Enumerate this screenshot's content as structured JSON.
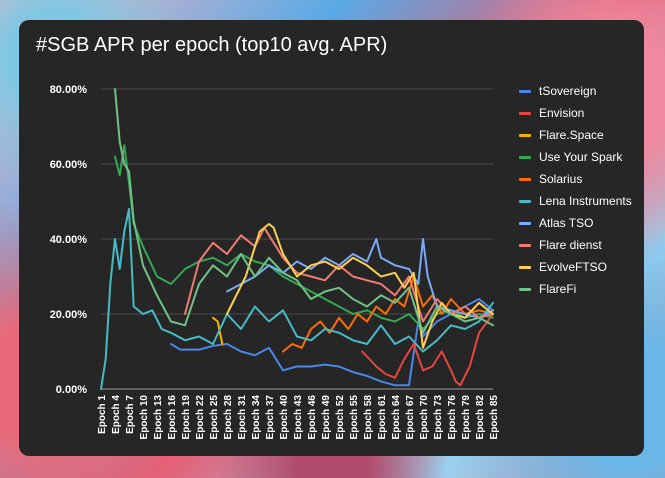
{
  "chart_data": {
    "type": "line",
    "title": "#SGB APR per epoch (top10 avg. APR)",
    "xlabel": "",
    "ylabel": "",
    "ylim": [
      0,
      80
    ],
    "y_ticks": [
      "0.00%",
      "20.00%",
      "40.00%",
      "60.00%",
      "80.00%"
    ],
    "x_ticks": [
      "Epoch 1",
      "Epoch 4",
      "Epoch 7",
      "Epoch 10",
      "Epoch 13",
      "Epoch 16",
      "Epoch 19",
      "Epoch 22",
      "Epoch 25",
      "Epoch 28",
      "Epoch 31",
      "Epoch 34",
      "Epoch 37",
      "Epoch 40",
      "Epoch 43",
      "Epoch 46",
      "Epoch 49",
      "Epoch 52",
      "Epoch 55",
      "Epoch 58",
      "Epoch 61",
      "Epoch 64",
      "Epoch 67",
      "Epoch 70",
      "Epoch 73",
      "Epoch 76",
      "Epoch 79",
      "Epoch 82",
      "Epoch 85"
    ],
    "x_range": [
      1,
      85
    ],
    "legend_position": "right",
    "series": [
      {
        "name": "tSovereign",
        "color": "#4a86e8",
        "points": [
          [
            16,
            12
          ],
          [
            18,
            10.5
          ],
          [
            22,
            10.5
          ],
          [
            25,
            11.5
          ],
          [
            28,
            12
          ],
          [
            31,
            10
          ],
          [
            34,
            9
          ],
          [
            37,
            11
          ],
          [
            39,
            7
          ],
          [
            40,
            5
          ],
          [
            43,
            6
          ],
          [
            46,
            6
          ],
          [
            49,
            6.5
          ],
          [
            52,
            6
          ],
          [
            55,
            4.5
          ],
          [
            58,
            3.5
          ],
          [
            61,
            2
          ],
          [
            64,
            1
          ],
          [
            67,
            1
          ],
          [
            69,
            18
          ],
          [
            70,
            14
          ],
          [
            73,
            18
          ],
          [
            76,
            20
          ],
          [
            79,
            22
          ],
          [
            82,
            24
          ],
          [
            85,
            21
          ]
        ]
      },
      {
        "name": "Envision",
        "color": "#e8453c",
        "points": [
          [
            57,
            10
          ],
          [
            60,
            6
          ],
          [
            62,
            4
          ],
          [
            64,
            3
          ],
          [
            66,
            8
          ],
          [
            68,
            12
          ],
          [
            70,
            5
          ],
          [
            72,
            6
          ],
          [
            74,
            10
          ],
          [
            76,
            5
          ],
          [
            77,
            2
          ],
          [
            78,
            1
          ],
          [
            80,
            6
          ],
          [
            82,
            15
          ],
          [
            85,
            20
          ]
        ]
      },
      {
        "name": "Flare.Space",
        "color": "#f6b400",
        "points": [
          [
            25,
            19
          ],
          [
            26,
            18
          ],
          [
            27,
            12
          ]
        ]
      },
      {
        "name": "Use Your Spark",
        "color": "#34a853",
        "points": [
          [
            4,
            62
          ],
          [
            5,
            57
          ],
          [
            6,
            65
          ],
          [
            7,
            55
          ],
          [
            8,
            44
          ],
          [
            10,
            38
          ],
          [
            13,
            30
          ],
          [
            16,
            28
          ],
          [
            19,
            32
          ],
          [
            22,
            34
          ],
          [
            25,
            35
          ],
          [
            28,
            33
          ],
          [
            31,
            36
          ],
          [
            34,
            34
          ],
          [
            37,
            33
          ],
          [
            40,
            30
          ],
          [
            43,
            28
          ],
          [
            46,
            26
          ],
          [
            49,
            24
          ],
          [
            52,
            22
          ],
          [
            55,
            20
          ],
          [
            58,
            21
          ],
          [
            61,
            19
          ],
          [
            64,
            18
          ],
          [
            67,
            20
          ],
          [
            70,
            16
          ],
          [
            73,
            20
          ],
          [
            76,
            21
          ],
          [
            79,
            19
          ],
          [
            82,
            20
          ],
          [
            85,
            19
          ]
        ]
      },
      {
        "name": "Solarius",
        "color": "#ff6d00",
        "points": [
          [
            40,
            10
          ],
          [
            42,
            12
          ],
          [
            44,
            11
          ],
          [
            46,
            16
          ],
          [
            48,
            18
          ],
          [
            50,
            15
          ],
          [
            52,
            19
          ],
          [
            54,
            16
          ],
          [
            56,
            20
          ],
          [
            58,
            18
          ],
          [
            60,
            22
          ],
          [
            62,
            20
          ],
          [
            64,
            24
          ],
          [
            66,
            22
          ],
          [
            68,
            30
          ],
          [
            70,
            22
          ],
          [
            72,
            25
          ],
          [
            74,
            20
          ],
          [
            76,
            24
          ],
          [
            79,
            20
          ],
          [
            82,
            21
          ],
          [
            85,
            20
          ]
        ]
      },
      {
        "name": "Lena Instruments",
        "color": "#46bdc6",
        "points": [
          [
            1,
            0
          ],
          [
            2,
            8
          ],
          [
            3,
            28
          ],
          [
            4,
            40
          ],
          [
            5,
            32
          ],
          [
            6,
            42
          ],
          [
            7,
            48
          ],
          [
            8,
            22
          ],
          [
            10,
            20
          ],
          [
            12,
            21
          ],
          [
            14,
            16
          ],
          [
            16,
            15
          ],
          [
            19,
            13
          ],
          [
            22,
            14
          ],
          [
            25,
            12
          ],
          [
            28,
            20
          ],
          [
            31,
            16
          ],
          [
            34,
            22
          ],
          [
            37,
            18
          ],
          [
            40,
            21
          ],
          [
            43,
            14
          ],
          [
            46,
            13
          ],
          [
            49,
            16
          ],
          [
            52,
            15
          ],
          [
            55,
            13
          ],
          [
            58,
            12
          ],
          [
            61,
            17
          ],
          [
            64,
            12
          ],
          [
            67,
            14
          ],
          [
            70,
            10
          ],
          [
            73,
            13
          ],
          [
            76,
            17
          ],
          [
            79,
            16
          ],
          [
            82,
            18
          ],
          [
            85,
            23
          ]
        ]
      },
      {
        "name": "Atlas TSO",
        "color": "#7baaf7",
        "points": [
          [
            28,
            26
          ],
          [
            31,
            28
          ],
          [
            34,
            30
          ],
          [
            37,
            33
          ],
          [
            40,
            31
          ],
          [
            43,
            34
          ],
          [
            46,
            32
          ],
          [
            49,
            35
          ],
          [
            52,
            33
          ],
          [
            55,
            36
          ],
          [
            58,
            34
          ],
          [
            60,
            40
          ],
          [
            61,
            35
          ],
          [
            64,
            33
          ],
          [
            67,
            32
          ],
          [
            69,
            28
          ],
          [
            70,
            40
          ],
          [
            71,
            30
          ],
          [
            73,
            22
          ],
          [
            76,
            21
          ],
          [
            79,
            20
          ],
          [
            82,
            19
          ],
          [
            85,
            21
          ]
        ]
      },
      {
        "name": "Flare dienst",
        "color": "#f07b72",
        "points": [
          [
            19,
            20
          ],
          [
            22,
            34
          ],
          [
            25,
            39
          ],
          [
            28,
            36
          ],
          [
            31,
            41
          ],
          [
            34,
            38
          ],
          [
            36,
            43
          ],
          [
            38,
            39
          ],
          [
            40,
            35
          ],
          [
            43,
            31
          ],
          [
            46,
            30
          ],
          [
            49,
            29
          ],
          [
            52,
            33
          ],
          [
            55,
            30
          ],
          [
            58,
            29
          ],
          [
            61,
            28
          ],
          [
            64,
            25
          ],
          [
            67,
            30
          ],
          [
            70,
            18
          ],
          [
            73,
            24
          ],
          [
            76,
            20
          ],
          [
            79,
            22
          ],
          [
            82,
            19
          ],
          [
            85,
            20
          ]
        ]
      },
      {
        "name": "EvolveFTSO",
        "color": "#fcd04f",
        "points": [
          [
            28,
            20
          ],
          [
            30,
            25
          ],
          [
            32,
            30
          ],
          [
            34,
            38
          ],
          [
            35,
            42
          ],
          [
            37,
            44
          ],
          [
            38,
            43
          ],
          [
            40,
            36
          ],
          [
            43,
            30
          ],
          [
            46,
            33
          ],
          [
            49,
            34
          ],
          [
            52,
            32
          ],
          [
            55,
            35
          ],
          [
            58,
            33
          ],
          [
            61,
            30
          ],
          [
            64,
            31
          ],
          [
            66,
            27
          ],
          [
            68,
            31
          ],
          [
            70,
            11
          ],
          [
            72,
            18
          ],
          [
            74,
            23
          ],
          [
            76,
            20
          ],
          [
            79,
            19
          ],
          [
            82,
            23
          ],
          [
            85,
            20
          ]
        ]
      },
      {
        "name": "FlareFi",
        "color": "#71c287",
        "points": [
          [
            4,
            80
          ],
          [
            5,
            66
          ],
          [
            6,
            60
          ],
          [
            7,
            58
          ],
          [
            8,
            45
          ],
          [
            10,
            33
          ],
          [
            13,
            25
          ],
          [
            16,
            18
          ],
          [
            19,
            17
          ],
          [
            22,
            28
          ],
          [
            25,
            33
          ],
          [
            28,
            30
          ],
          [
            31,
            36
          ],
          [
            34,
            30
          ],
          [
            37,
            35
          ],
          [
            40,
            31
          ],
          [
            43,
            29
          ],
          [
            46,
            24
          ],
          [
            49,
            26
          ],
          [
            52,
            27
          ],
          [
            55,
            24
          ],
          [
            58,
            22
          ],
          [
            61,
            25
          ],
          [
            64,
            23
          ],
          [
            67,
            27
          ],
          [
            70,
            15
          ],
          [
            73,
            22
          ],
          [
            76,
            20
          ],
          [
            79,
            18
          ],
          [
            82,
            19
          ],
          [
            85,
            17
          ]
        ]
      }
    ]
  }
}
